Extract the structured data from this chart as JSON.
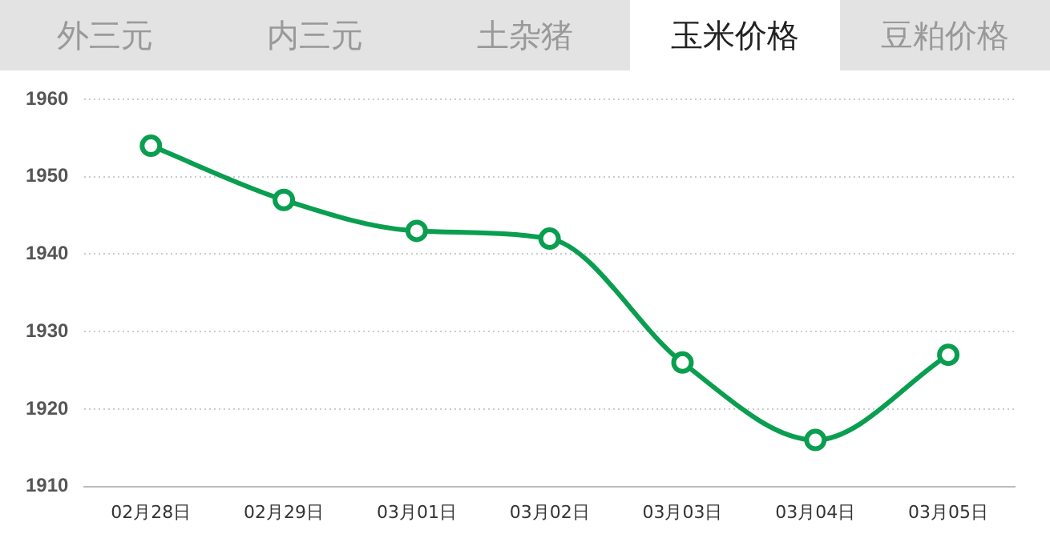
{
  "chart_data": {
    "type": "line",
    "annotations": [
      "外三元",
      "内三元",
      "土杂猪",
      "玉米价格",
      "豆粕价格"
    ],
    "categories": [
      "02月28日",
      "02月29日",
      "03月01日",
      "03月02日",
      "03月03日",
      "03月04日",
      "03月05日"
    ],
    "series": [
      {
        "color": "#0a9e50",
        "values": [
          1954,
          1947,
          1943,
          1942,
          1926,
          1916,
          1927
        ]
      }
    ],
    "ylim": [
      1910,
      1960
    ],
    "yticks": [
      1910,
      1920,
      1930,
      1940,
      1950,
      1960
    ],
    "grid": "y",
    "marker": "circle",
    "line_style": "solid",
    "legend": false
  }
}
